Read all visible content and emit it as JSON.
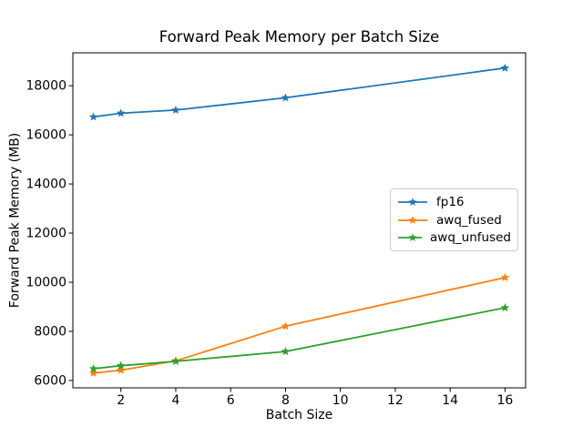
{
  "chart_data": {
    "type": "line",
    "title": "Forward Peak Memory per Batch Size",
    "xlabel": "Batch Size",
    "ylabel": "Forward Peak Memory (MB)",
    "x": [
      1,
      2,
      4,
      8,
      16
    ],
    "series": [
      {
        "name": "fp16",
        "color": "#1f77b4",
        "values": [
          16730,
          16880,
          17010,
          17510,
          18720
        ]
      },
      {
        "name": "awq_fused",
        "color": "#ff7f0e",
        "values": [
          6300,
          6420,
          6800,
          8210,
          10190
        ]
      },
      {
        "name": "awq_unfused",
        "color": "#2ca02c",
        "values": [
          6480,
          6600,
          6780,
          7180,
          8960
        ]
      }
    ],
    "marker": "star",
    "xticks": [
      2,
      4,
      6,
      8,
      10,
      12,
      14,
      16
    ],
    "yticks": [
      6000,
      8000,
      10000,
      12000,
      14000,
      16000,
      18000
    ],
    "xlim": [
      0.25,
      16.75
    ],
    "ylim": [
      5700,
      19340
    ],
    "grid": false,
    "legend": {
      "entries": [
        "fp16",
        "awq_fused",
        "awq_unfused"
      ],
      "position": "center right"
    },
    "axis_color": "#000000",
    "background": "#ffffff"
  }
}
